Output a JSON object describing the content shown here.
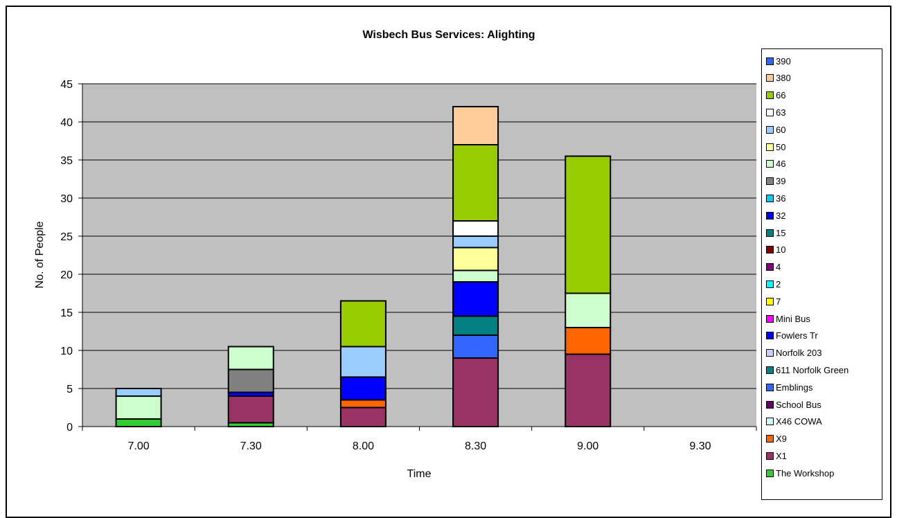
{
  "chart_data": {
    "type": "bar",
    "stacked": true,
    "title": "Wisbech Bus Services: Alighting",
    "xlabel": "Time",
    "ylabel": "No. of People",
    "ylim": [
      0,
      45
    ],
    "yticks": [
      "0",
      "5",
      "10",
      "15",
      "20",
      "25",
      "30",
      "35",
      "40",
      "45"
    ],
    "categories": [
      "7.00",
      "7.30",
      "8.00",
      "8.30",
      "9.00",
      "9.30"
    ],
    "grid": true,
    "legend_position": "right",
    "plot_background": "#c0c0c0",
    "series": [
      {
        "name": "The Workshop",
        "color": "#33cc33",
        "values": [
          1,
          0.5,
          0,
          0,
          0,
          0
        ]
      },
      {
        "name": "X1",
        "color": "#993366",
        "values": [
          0,
          3.5,
          2.5,
          9,
          9.5,
          0
        ]
      },
      {
        "name": "X9",
        "color": "#ff6600",
        "values": [
          0,
          0,
          1,
          0,
          3.5,
          0
        ]
      },
      {
        "name": "X46 COWA",
        "color": "#ccffff",
        "values": [
          0,
          0,
          0,
          0,
          0,
          0
        ]
      },
      {
        "name": "School Bus",
        "color": "#660066",
        "values": [
          0,
          0,
          0,
          0,
          0,
          0
        ]
      },
      {
        "name": "Emblings",
        "color": "#3366ff",
        "values": [
          0,
          0,
          0,
          3,
          0,
          0
        ]
      },
      {
        "name": "611 Norfolk Green",
        "color": "#008080",
        "values": [
          0,
          0,
          0,
          2.5,
          0,
          0
        ]
      },
      {
        "name": "Norfolk 203",
        "color": "#ccccff",
        "values": [
          0,
          0,
          0,
          0,
          0,
          0
        ]
      },
      {
        "name": "Fowlers Tr",
        "color": "#0000ff",
        "values": [
          0,
          0.5,
          3,
          4.5,
          0,
          0
        ]
      },
      {
        "name": "Mini Bus",
        "color": "#ff00ff",
        "values": [
          0,
          0,
          0,
          0,
          0,
          0
        ]
      },
      {
        "name": "7",
        "color": "#ffff00",
        "values": [
          0,
          0,
          0,
          0,
          0,
          0
        ]
      },
      {
        "name": "2",
        "color": "#00ffff",
        "values": [
          0,
          0,
          0,
          0,
          0,
          0
        ]
      },
      {
        "name": "4",
        "color": "#800080",
        "values": [
          0,
          0,
          0,
          0,
          0,
          0
        ]
      },
      {
        "name": "10",
        "color": "#800000",
        "values": [
          0,
          0,
          0,
          0,
          0,
          0
        ]
      },
      {
        "name": "15",
        "color": "#008080",
        "values": [
          0,
          0,
          0,
          0,
          0,
          0
        ]
      },
      {
        "name": "32",
        "color": "#0000ff",
        "values": [
          0,
          0,
          0,
          0,
          0,
          0
        ]
      },
      {
        "name": "36",
        "color": "#00ccff",
        "values": [
          0,
          0,
          0,
          0,
          0,
          0
        ]
      },
      {
        "name": "39",
        "color": "#808080",
        "values": [
          0,
          3,
          0,
          0,
          0,
          0
        ]
      },
      {
        "name": "46",
        "color": "#ccffcc",
        "values": [
          3,
          3,
          0,
          1.5,
          4.5,
          0
        ]
      },
      {
        "name": "50",
        "color": "#ffff99",
        "values": [
          0,
          0,
          0,
          3,
          0,
          0
        ]
      },
      {
        "name": "60",
        "color": "#99ccff",
        "values": [
          1,
          0,
          4,
          1.5,
          0,
          0
        ]
      },
      {
        "name": "63",
        "color": "#ffffff",
        "values": [
          0,
          0,
          0,
          2,
          0,
          0
        ]
      },
      {
        "name": "66",
        "color": "#99cc00",
        "values": [
          0,
          0,
          6,
          10,
          18,
          0
        ]
      },
      {
        "name": "380",
        "color": "#ffcc99",
        "values": [
          0,
          0,
          0,
          5,
          0,
          0
        ]
      },
      {
        "name": "390",
        "color": "#3366ff",
        "values": [
          0,
          0,
          0,
          0,
          0,
          0
        ]
      }
    ]
  }
}
